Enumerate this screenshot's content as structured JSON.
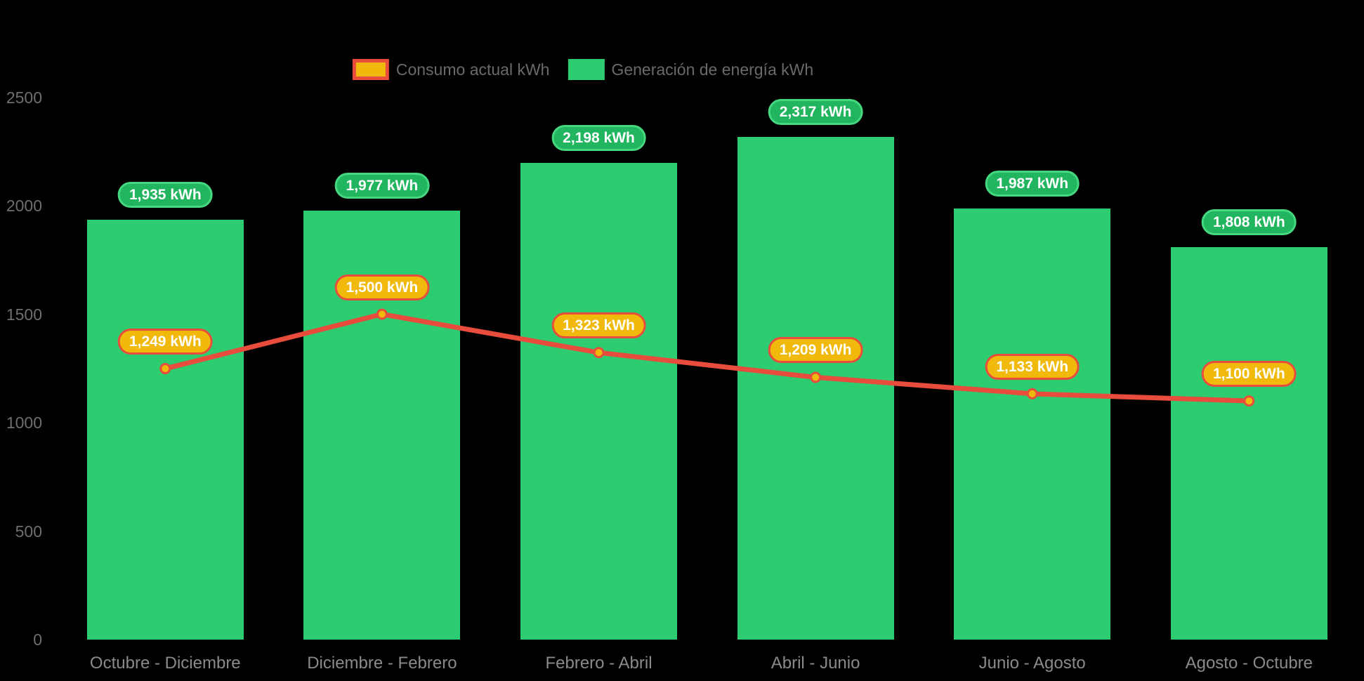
{
  "background": "#000000",
  "chart_data": {
    "type": "bar",
    "title": "",
    "xlabel": "",
    "ylabel": "",
    "categories": [
      "Octubre - Diciembre",
      "Diciembre - Febrero",
      "Febrero - Abril",
      "Abril - Junio",
      "Junio - Agosto",
      "Agosto - Octubre"
    ],
    "series": [
      {
        "name": "Consumo actual kWh",
        "type": "line",
        "values": [
          1249,
          1500,
          1323,
          1209,
          1133,
          1100
        ],
        "data_labels": [
          "1,249 kWh",
          "1,500 kWh",
          "1,323 kWh",
          "1,209 kWh",
          "1,133 kWh",
          "1,100 kWh"
        ]
      },
      {
        "name": "Generación de energía kWh",
        "type": "bar",
        "values": [
          1935,
          1977,
          2198,
          2317,
          1987,
          1808
        ],
        "data_labels": [
          "1,935 kWh",
          "1,977 kWh",
          "2,198 kWh",
          "2,317 kWh",
          "1,987 kWh",
          "1,808 kWh"
        ]
      }
    ],
    "ylim": [
      0,
      2500
    ],
    "yticks": [
      0,
      500,
      1000,
      1500,
      2000,
      2500
    ],
    "grid": false,
    "legend_position": "top",
    "colors": {
      "bar": "#2ecc71",
      "bar_label_bg": "#22b55f",
      "bar_label_border": "#45d87e",
      "line": "#e74c3c",
      "point_fill": "#f0b90c",
      "line_label_bg": "#f0b90c",
      "line_label_border": "#e74c3c",
      "label_text": "#ffffff",
      "y_axis_text": "#6e6e6e",
      "x_axis_text": "#8a8a8a",
      "legend_text": "#6a6a6a"
    }
  }
}
